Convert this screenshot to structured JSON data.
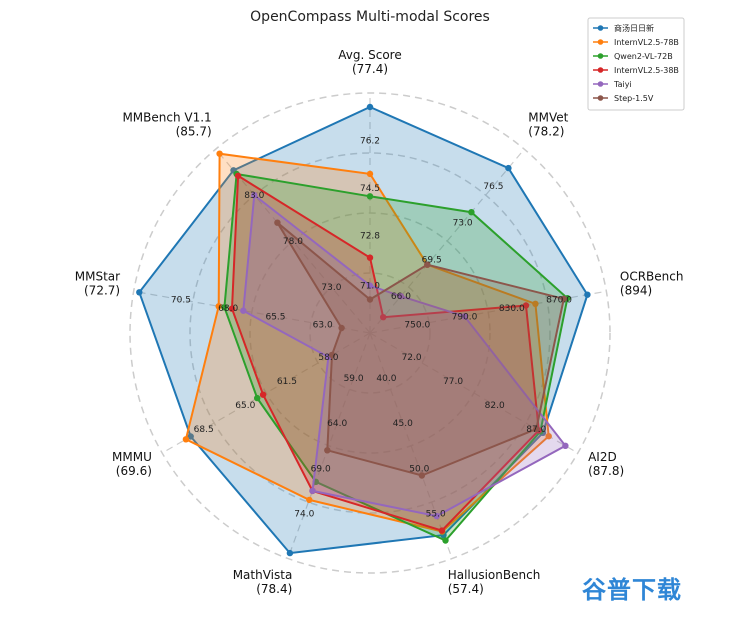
{
  "chart_data": {
    "type": "radar",
    "title": "OpenCompass Multi-modal Scores",
    "axes": [
      {
        "name": "Avg. Score",
        "value_label": "(77.4)",
        "ticks": [
          "71.0",
          "72.8",
          "74.5",
          "76.2"
        ],
        "range": [
          69.3,
          77.9
        ]
      },
      {
        "name": "MMVet",
        "value_label": "(78.2)",
        "ticks": [
          "66.0",
          "69.5",
          "73.0",
          "76.5"
        ],
        "range": [
          62.5,
          80.0
        ]
      },
      {
        "name": "OCRBench",
        "value_label": "(894)",
        "ticks": [
          "750.0",
          "790.0",
          "830.0",
          "870.0"
        ],
        "range": [
          710,
          910
        ]
      },
      {
        "name": "AI2D",
        "value_label": "(87.8)",
        "ticks": [
          "72.0",
          "77.0",
          "82.0",
          "87.0"
        ],
        "range": [
          67,
          92
        ]
      },
      {
        "name": "HallusionBench",
        "value_label": "(57.4)",
        "ticks": [
          "40.0",
          "45.0",
          "50.0",
          "55.0"
        ],
        "range": [
          35,
          60
        ]
      },
      {
        "name": "MathVista",
        "value_label": "(78.4)",
        "ticks": [
          "59.0",
          "64.0",
          "69.0",
          "74.0"
        ],
        "range": [
          54,
          79
        ]
      },
      {
        "name": "MMMU",
        "value_label": "(69.6)",
        "ticks": [
          "58.0",
          "61.5",
          "65.0",
          "68.5"
        ],
        "range": [
          54.5,
          72
        ]
      },
      {
        "name": "MMStar",
        "value_label": "(72.7)",
        "ticks": [
          "63.0",
          "65.5",
          "68.0",
          "70.5"
        ],
        "range": [
          60.5,
          73
        ]
      },
      {
        "name": "MMBench V1.1",
        "value_label": "(85.7)",
        "ticks": [
          "73.0",
          "78.0",
          "83.0"
        ],
        "range": [
          68,
          88
        ]
      }
    ],
    "series": [
      {
        "name": "商汤日日新",
        "color": "#1f77b4",
        "values": [
          77.4,
          78.2,
          894,
          87.8,
          57.4,
          78.4,
          69.6,
          72.7,
          85.7
        ]
      },
      {
        "name": "InternVL2.5-78B",
        "color": "#ff7f0e",
        "values": [
          75.0,
          69.0,
          850,
          88.5,
          57.0,
          72.5,
          70.0,
          68.5,
          87.5
        ]
      },
      {
        "name": "Qwen2-VL-72B",
        "color": "#2ca02c",
        "values": [
          74.2,
          74.0,
          877,
          87.5,
          58.0,
          70.5,
          64.0,
          68.2,
          85.3
        ]
      },
      {
        "name": "InternVL2.5-38B",
        "color": "#d62728",
        "values": [
          72.0,
          64.0,
          842,
          87.3,
          56.9,
          71.5,
          63.5,
          67.8,
          85.1
        ]
      },
      {
        "name": "Taiyi",
        "color": "#9467bd",
        "values": [
          71.0,
          66.0,
          790,
          90.5,
          55.3,
          71.5,
          58.0,
          67.2,
          83.0
        ]
      },
      {
        "name": "Step-1.5V",
        "color": "#8c564b",
        "values": [
          70.5,
          69.0,
          874,
          87.0,
          50.8,
          67.0,
          57.7,
          62.0,
          80.0
        ]
      }
    ],
    "grid": true,
    "legend_position": "top-right"
  },
  "watermark": {
    "text": "谷普下载",
    "color": "#2f86d6"
  }
}
